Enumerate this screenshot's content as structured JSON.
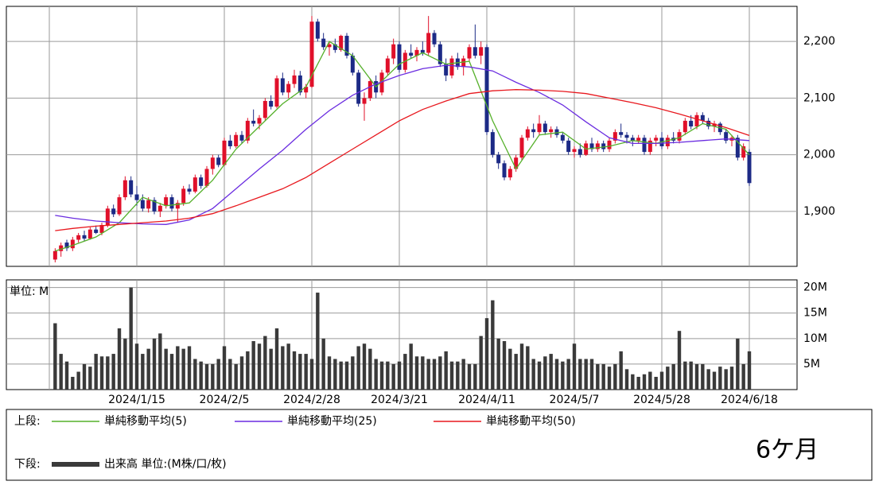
{
  "chart_data": [
    {
      "type": "candlestick",
      "legend_title": "上段:",
      "up_color": "#e0102a",
      "down_color": "#1c2a86",
      "ylim": [
        1803,
        2262
      ],
      "yticks": [
        {
          "value": 1900,
          "label": "1,900"
        },
        {
          "value": 2000,
          "label": "2,000"
        },
        {
          "value": 2100,
          "label": "2,100"
        },
        {
          "value": 2200,
          "label": "2,200"
        }
      ],
      "grid": true,
      "open": [
        1815,
        1830,
        1845,
        1835,
        1850,
        1858,
        1852,
        1868,
        1862,
        1876,
        1905,
        1895,
        1925,
        1955,
        1930,
        1920,
        1905,
        1920,
        1900,
        1910,
        1925,
        1905,
        1915,
        1940,
        1935,
        1960,
        1945,
        1975,
        1995,
        1982,
        2025,
        2015,
        2035,
        2025,
        2060,
        2055,
        2065,
        2095,
        2085,
        2135,
        2110,
        2125,
        2140,
        2110,
        2120,
        2235,
        2205,
        2190,
        2195,
        2185,
        2210,
        2175,
        2145,
        2090,
        2100,
        2130,
        2110,
        2145,
        2170,
        2195,
        2150,
        2180,
        2175,
        2185,
        2180,
        2215,
        2195,
        2160,
        2140,
        2170,
        2155,
        2170,
        2190,
        2175,
        2190,
        2040,
        2000,
        1985,
        1960,
        1975,
        1995,
        2030,
        2045,
        2040,
        2055,
        2040,
        2045,
        2035,
        2025,
        2005,
        2010,
        2000,
        2020,
        2010,
        2020,
        2010,
        2025,
        2040,
        2035,
        2030,
        2025,
        2030,
        2005,
        2025,
        2030,
        2015,
        2030,
        2025,
        2040,
        2060,
        2050,
        2070,
        2060,
        2050,
        2055,
        2040,
        2025,
        2030,
        1995,
        2005
      ],
      "high": [
        1835,
        1845,
        1850,
        1855,
        1862,
        1866,
        1872,
        1875,
        1880,
        1910,
        1912,
        1930,
        1962,
        1962,
        1945,
        1930,
        1925,
        1925,
        1915,
        1930,
        1930,
        1920,
        1945,
        1948,
        1965,
        1965,
        1980,
        2000,
        2000,
        2030,
        2035,
        2040,
        2042,
        2065,
        2080,
        2070,
        2100,
        2105,
        2140,
        2145,
        2130,
        2150,
        2148,
        2125,
        2245,
        2240,
        2215,
        2200,
        2205,
        2212,
        2215,
        2180,
        2150,
        2110,
        2135,
        2140,
        2150,
        2175,
        2205,
        2200,
        2185,
        2195,
        2190,
        2200,
        2245,
        2220,
        2200,
        2170,
        2175,
        2180,
        2175,
        2195,
        2230,
        2200,
        2195,
        2045,
        2005,
        1990,
        1980,
        2000,
        2035,
        2050,
        2055,
        2070,
        2060,
        2050,
        2050,
        2040,
        2030,
        2015,
        2020,
        2025,
        2030,
        2025,
        2025,
        2030,
        2045,
        2055,
        2040,
        2035,
        2035,
        2035,
        2030,
        2035,
        2040,
        2035,
        2040,
        2045,
        2065,
        2070,
        2075,
        2075,
        2065,
        2060,
        2058,
        2045,
        2035,
        2035,
        2020,
        2010
      ],
      "low": [
        1810,
        1820,
        1830,
        1830,
        1845,
        1848,
        1850,
        1860,
        1858,
        1872,
        1890,
        1892,
        1920,
        1925,
        1910,
        1900,
        1898,
        1895,
        1890,
        1905,
        1900,
        1880,
        1910,
        1930,
        1932,
        1940,
        1942,
        1965,
        1978,
        1980,
        2010,
        2012,
        2020,
        2020,
        2050,
        2045,
        2060,
        2080,
        2082,
        2105,
        2100,
        2118,
        2105,
        2100,
        2118,
        2200,
        2185,
        2175,
        2180,
        2182,
        2170,
        2140,
        2085,
        2060,
        2095,
        2100,
        2105,
        2140,
        2160,
        2145,
        2145,
        2170,
        2165,
        2175,
        2175,
        2190,
        2155,
        2130,
        2135,
        2150,
        2140,
        2165,
        2170,
        2160,
        2035,
        1995,
        1975,
        1955,
        1955,
        1970,
        1990,
        2025,
        2030,
        2035,
        2035,
        2030,
        2030,
        2020,
        2000,
        1995,
        1995,
        1998,
        2005,
        2005,
        2005,
        2005,
        2020,
        2030,
        2020,
        2015,
        2020,
        2000,
        2000,
        2015,
        2010,
        2010,
        2020,
        2020,
        2035,
        2045,
        2045,
        2055,
        2045,
        2040,
        2035,
        2020,
        2015,
        1990,
        1990,
        1945
      ],
      "close": [
        1830,
        1840,
        1835,
        1850,
        1858,
        1852,
        1868,
        1862,
        1876,
        1905,
        1895,
        1925,
        1955,
        1930,
        1920,
        1905,
        1920,
        1900,
        1910,
        1925,
        1905,
        1915,
        1940,
        1935,
        1960,
        1945,
        1975,
        1995,
        1982,
        2025,
        2015,
        2035,
        2025,
        2060,
        2055,
        2065,
        2095,
        2085,
        2135,
        2110,
        2125,
        2140,
        2110,
        2120,
        2235,
        2205,
        2190,
        2195,
        2185,
        2210,
        2175,
        2145,
        2090,
        2100,
        2130,
        2110,
        2145,
        2170,
        2195,
        2150,
        2180,
        2175,
        2185,
        2180,
        2215,
        2195,
        2160,
        2140,
        2170,
        2155,
        2170,
        2190,
        2175,
        2190,
        2040,
        2000,
        1985,
        1960,
        1975,
        1995,
        2030,
        2045,
        2040,
        2055,
        2040,
        2045,
        2035,
        2025,
        2005,
        2010,
        2000,
        2020,
        2010,
        2020,
        2010,
        2025,
        2040,
        2035,
        2030,
        2025,
        2030,
        2005,
        2025,
        2030,
        2015,
        2030,
        2025,
        2040,
        2060,
        2050,
        2070,
        2060,
        2050,
        2055,
        2040,
        2025,
        2030,
        1995,
        2015,
        1950
      ],
      "series": [
        {
          "name": "単純移動平均(5)",
          "color": "#55b02a",
          "x": [
            0,
            3,
            7,
            11,
            15,
            19,
            23,
            27,
            31,
            35,
            39,
            43,
            47,
            51,
            55,
            59,
            63,
            67,
            71,
            75,
            79,
            83,
            87,
            91,
            95,
            99,
            103,
            107,
            111,
            115,
            119
          ],
          "values": [
            1830,
            1840,
            1855,
            1880,
            1925,
            1910,
            1915,
            1955,
            2010,
            2050,
            2090,
            2120,
            2200,
            2175,
            2120,
            2160,
            2180,
            2160,
            2165,
            2060,
            1975,
            2035,
            2040,
            2010,
            2015,
            2025,
            2020,
            2030,
            2055,
            2045,
            2000
          ]
        },
        {
          "name": "単純移動平均(25)",
          "color": "#6a2ce0",
          "x": [
            0,
            3,
            7,
            11,
            15,
            19,
            23,
            27,
            31,
            35,
            39,
            43,
            47,
            51,
            55,
            59,
            63,
            67,
            71,
            75,
            79,
            83,
            87,
            91,
            95,
            99,
            103,
            107,
            111,
            115,
            119
          ],
          "values": [
            1893,
            1888,
            1883,
            1880,
            1878,
            1877,
            1885,
            1905,
            1940,
            1975,
            2008,
            2045,
            2078,
            2105,
            2125,
            2140,
            2152,
            2158,
            2155,
            2148,
            2128,
            2110,
            2088,
            2058,
            2030,
            2020,
            2020,
            2022,
            2025,
            2028,
            2025
          ]
        },
        {
          "name": "単純移動平均(50)",
          "color": "#e8181e",
          "x": [
            0,
            3,
            7,
            11,
            15,
            19,
            23,
            27,
            31,
            35,
            39,
            43,
            47,
            51,
            55,
            59,
            63,
            67,
            71,
            75,
            79,
            83,
            87,
            91,
            95,
            99,
            103,
            107,
            111,
            115,
            119
          ],
          "values": [
            1866,
            1870,
            1874,
            1877,
            1880,
            1883,
            1888,
            1896,
            1910,
            1925,
            1940,
            1960,
            1985,
            2010,
            2035,
            2060,
            2080,
            2095,
            2108,
            2113,
            2115,
            2114,
            2112,
            2108,
            2100,
            2092,
            2083,
            2072,
            2060,
            2048,
            2034
          ]
        }
      ]
    },
    {
      "type": "bar",
      "legend_title": "下段:",
      "unit_label": "単位: M",
      "name": "出来高 単位:(M株/口/枚)",
      "color": "#3a3a3a",
      "ylim": [
        0,
        21.5
      ],
      "yticks": [
        {
          "value": 5,
          "label": "5M"
        },
        {
          "value": 10,
          "label": "10M"
        },
        {
          "value": 15,
          "label": "15M"
        },
        {
          "value": 20,
          "label": "20M"
        }
      ],
      "grid": true,
      "categories": [
        null,
        null,
        null,
        null,
        null,
        null,
        null,
        null,
        null,
        null,
        null,
        null,
        null,
        null,
        "2024/1/15",
        null,
        null,
        null,
        null,
        null,
        null,
        null,
        null,
        null,
        null,
        null,
        null,
        null,
        null,
        "2024/2/5",
        null,
        null,
        null,
        null,
        null,
        null,
        null,
        null,
        null,
        null,
        null,
        null,
        null,
        null,
        "2024/2/28",
        null,
        null,
        null,
        null,
        null,
        null,
        null,
        null,
        null,
        null,
        null,
        null,
        null,
        null,
        "2024/3/21",
        null,
        null,
        null,
        null,
        null,
        null,
        null,
        null,
        null,
        null,
        null,
        null,
        null,
        null,
        "2024/4/11",
        null,
        null,
        null,
        null,
        null,
        null,
        null,
        null,
        null,
        null,
        null,
        null,
        null,
        null,
        "2024/5/7",
        null,
        null,
        null,
        null,
        null,
        null,
        null,
        null,
        null,
        null,
        null,
        null,
        null,
        null,
        "2024/5/28",
        null,
        null,
        null,
        null,
        null,
        null,
        null,
        null,
        null,
        null,
        null,
        null,
        null,
        null,
        "2024/6/18"
      ],
      "values": [
        13,
        7,
        5.5,
        2.5,
        3.5,
        5,
        4.5,
        7,
        6.5,
        6.5,
        7,
        12,
        10,
        20,
        9,
        7,
        8,
        10,
        11,
        8,
        7,
        8.5,
        8,
        8.5,
        6,
        5.5,
        5,
        5,
        6,
        8.5,
        6,
        5,
        6.5,
        7.5,
        9.5,
        9,
        10.5,
        8,
        12,
        8.5,
        9,
        7.5,
        7,
        7,
        6,
        19,
        10,
        6.5,
        6,
        5.5,
        5.5,
        6.5,
        8.5,
        9,
        8,
        6,
        5.5,
        5.5,
        5,
        5.5,
        7,
        9,
        6.5,
        6.5,
        6,
        6,
        6.5,
        7.5,
        5.5,
        5.5,
        6,
        5,
        5,
        10.5,
        14,
        17.5,
        10,
        9.5,
        8,
        7,
        9,
        8.5,
        6,
        5.5,
        6.5,
        7,
        6,
        5.5,
        6,
        9,
        6,
        6,
        6,
        5,
        5,
        4.5,
        5,
        7.5,
        4,
        3,
        2.5,
        3,
        3.5,
        2.5,
        3.5,
        4.5,
        5,
        11.5,
        5.5,
        5.5,
        5,
        5,
        4,
        3.5,
        4.5,
        4,
        4.5,
        10,
        5,
        7.5
      ]
    }
  ],
  "period_label": "6ケ月"
}
